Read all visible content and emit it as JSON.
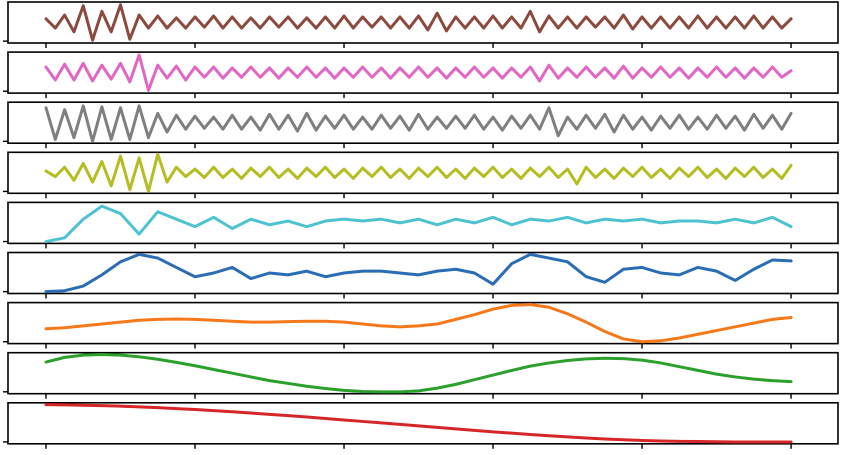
{
  "chart_data": [
    {
      "type": "line",
      "color": "#8c4a3f",
      "xlim": [
        -51,
        1063
      ],
      "xticks": [
        0,
        200,
        400,
        600,
        800,
        1000
      ],
      "ylim": [
        -1.1,
        1.1
      ],
      "yticks": [
        -1
      ],
      "x": [
        0,
        12.5,
        25,
        37.5,
        50,
        62.5,
        75,
        87.5,
        100,
        112.5,
        125,
        137.5,
        150,
        162.5,
        175,
        187.5,
        200,
        212.5,
        225,
        237.5,
        250,
        262.5,
        275,
        287.5,
        300,
        312.5,
        325,
        337.5,
        350,
        362.5,
        375,
        387.5,
        400,
        412.5,
        425,
        437.5,
        450,
        462.5,
        475,
        487.5,
        500,
        512.5,
        525,
        537.5,
        550,
        562.5,
        575,
        587.5,
        600,
        612.5,
        625,
        637.5,
        650,
        662.5,
        675,
        687.5,
        700,
        712.5,
        725,
        737.5,
        750,
        762.5,
        775,
        787.5,
        800,
        812.5,
        825,
        837.5,
        850,
        862.5,
        875,
        887.5,
        900,
        912.5,
        925,
        937.5,
        950,
        962.5,
        975,
        987.5,
        1000
      ],
      "values": [
        0.2,
        -0.3,
        0.4,
        -0.5,
        0.9,
        -0.95,
        0.6,
        -0.5,
        0.95,
        -0.9,
        0.4,
        -0.3,
        0.35,
        -0.3,
        0.25,
        -0.3,
        0.3,
        -0.25,
        0.35,
        -0.3,
        0.3,
        -0.3,
        0.25,
        -0.3,
        0.3,
        -0.25,
        0.3,
        -0.3,
        0.25,
        -0.3,
        0.3,
        -0.3,
        0.35,
        -0.3,
        0.3,
        -0.25,
        0.3,
        -0.3,
        0.3,
        -0.3,
        0.35,
        -0.4,
        0.5,
        -0.45,
        0.3,
        -0.3,
        0.3,
        -0.3,
        0.35,
        -0.3,
        0.3,
        -0.3,
        0.6,
        -0.5,
        0.35,
        -0.3,
        0.3,
        -0.3,
        0.3,
        -0.25,
        0.3,
        -0.3,
        0.4,
        -0.35,
        0.3,
        -0.3,
        0.3,
        -0.3,
        0.3,
        -0.3,
        0.35,
        -0.3,
        0.3,
        -0.3,
        0.3,
        -0.3,
        0.35,
        -0.3,
        0.3,
        -0.3,
        0.2
      ]
    },
    {
      "type": "line",
      "color": "#e067c4",
      "xlim": [
        -51,
        1063
      ],
      "xticks": [
        0,
        200,
        400,
        600,
        800,
        1000
      ],
      "ylim": [
        -1.1,
        1.1
      ],
      "yticks": [
        -1
      ],
      "x": [
        0,
        12.5,
        25,
        37.5,
        50,
        62.5,
        75,
        87.5,
        100,
        112.5,
        125,
        137.5,
        150,
        162.5,
        175,
        187.5,
        200,
        212.5,
        225,
        237.5,
        250,
        262.5,
        275,
        287.5,
        300,
        312.5,
        325,
        337.5,
        350,
        362.5,
        375,
        387.5,
        400,
        412.5,
        425,
        437.5,
        450,
        462.5,
        475,
        487.5,
        500,
        512.5,
        525,
        537.5,
        550,
        562.5,
        575,
        587.5,
        600,
        612.5,
        625,
        637.5,
        650,
        662.5,
        675,
        687.5,
        700,
        712.5,
        725,
        737.5,
        750,
        762.5,
        775,
        787.5,
        800,
        812.5,
        825,
        837.5,
        850,
        862.5,
        875,
        887.5,
        900,
        912.5,
        925,
        937.5,
        950,
        962.5,
        975,
        987.5,
        1000
      ],
      "values": [
        0.3,
        -0.4,
        0.45,
        -0.4,
        0.5,
        -0.45,
        0.4,
        -0.35,
        0.5,
        -0.5,
        0.95,
        -0.95,
        0.4,
        -0.3,
        0.35,
        -0.4,
        0.3,
        -0.25,
        0.3,
        -0.3,
        0.25,
        -0.25,
        0.3,
        -0.25,
        0.25,
        -0.3,
        0.25,
        -0.25,
        0.3,
        -0.25,
        0.25,
        -0.3,
        0.25,
        -0.25,
        0.3,
        -0.25,
        0.25,
        -0.3,
        0.25,
        -0.25,
        0.3,
        -0.25,
        0.25,
        -0.3,
        0.25,
        -0.25,
        0.3,
        -0.25,
        0.25,
        -0.3,
        0.25,
        -0.25,
        0.3,
        -0.45,
        0.4,
        -0.3,
        0.25,
        -0.25,
        0.3,
        -0.25,
        0.25,
        -0.3,
        0.35,
        -0.3,
        0.25,
        -0.25,
        0.3,
        -0.25,
        0.25,
        -0.3,
        0.25,
        -0.25,
        0.3,
        -0.25,
        0.25,
        -0.3,
        0.25,
        -0.25,
        0.3,
        -0.25,
        0.1
      ]
    },
    {
      "type": "line",
      "color": "#7f7f7f",
      "xlim": [
        -51,
        1063
      ],
      "xticks": [
        0,
        200,
        400,
        600,
        800,
        1000
      ],
      "ylim": [
        -1.1,
        1.1
      ],
      "yticks": [
        -1
      ],
      "x": [
        0,
        12.5,
        25,
        37.5,
        50,
        62.5,
        75,
        87.5,
        100,
        112.5,
        125,
        137.5,
        150,
        162.5,
        175,
        187.5,
        200,
        212.5,
        225,
        237.5,
        250,
        262.5,
        275,
        287.5,
        300,
        312.5,
        325,
        337.5,
        350,
        362.5,
        375,
        387.5,
        400,
        412.5,
        425,
        437.5,
        450,
        462.5,
        475,
        487.5,
        500,
        512.5,
        525,
        537.5,
        550,
        562.5,
        575,
        587.5,
        600,
        612.5,
        625,
        637.5,
        650,
        662.5,
        675,
        687.5,
        700,
        712.5,
        725,
        737.5,
        750,
        762.5,
        775,
        787.5,
        800,
        812.5,
        825,
        837.5,
        850,
        862.5,
        875,
        887.5,
        900,
        912.5,
        925,
        937.5,
        950,
        962.5,
        975,
        987.5,
        1000
      ],
      "values": [
        0.8,
        -0.9,
        0.7,
        -0.8,
        0.9,
        -1.0,
        0.85,
        -0.9,
        0.8,
        -0.9,
        0.9,
        -0.8,
        0.5,
        -0.5,
        0.4,
        -0.35,
        0.35,
        -0.3,
        0.3,
        -0.35,
        0.4,
        -0.35,
        0.3,
        -0.4,
        0.45,
        -0.35,
        0.4,
        -0.45,
        0.5,
        -0.4,
        0.35,
        -0.3,
        0.4,
        -0.35,
        0.3,
        -0.35,
        0.4,
        -0.3,
        0.35,
        -0.4,
        0.45,
        -0.35,
        0.3,
        -0.3,
        0.35,
        -0.3,
        0.4,
        -0.35,
        0.3,
        -0.4,
        0.35,
        -0.3,
        0.4,
        -0.35,
        0.8,
        -0.7,
        0.3,
        -0.35,
        0.4,
        -0.3,
        0.45,
        -0.5,
        0.4,
        -0.35,
        0.3,
        -0.4,
        0.35,
        -0.3,
        0.4,
        -0.35,
        0.3,
        -0.35,
        0.4,
        -0.3,
        0.35,
        -0.4,
        0.45,
        -0.3,
        0.4,
        -0.35,
        0.5
      ]
    },
    {
      "type": "line",
      "color": "#b5bd22",
      "xlim": [
        -51,
        1063
      ],
      "xticks": [
        0,
        200,
        400,
        600,
        800,
        1000
      ],
      "ylim": [
        -1.1,
        1.1
      ],
      "yticks": [
        -1
      ],
      "x": [
        0,
        12.5,
        25,
        37.5,
        50,
        62.5,
        75,
        87.5,
        100,
        112.5,
        125,
        137.5,
        150,
        162.5,
        175,
        187.5,
        200,
        212.5,
        225,
        237.5,
        250,
        262.5,
        275,
        287.5,
        300,
        312.5,
        325,
        337.5,
        350,
        362.5,
        375,
        387.5,
        400,
        412.5,
        425,
        437.5,
        450,
        462.5,
        475,
        487.5,
        500,
        512.5,
        525,
        537.5,
        550,
        562.5,
        575,
        587.5,
        600,
        612.5,
        625,
        637.5,
        650,
        662.5,
        675,
        687.5,
        700,
        712.5,
        725,
        737.5,
        750,
        762.5,
        775,
        787.5,
        800,
        812.5,
        825,
        837.5,
        850,
        862.5,
        875,
        887.5,
        900,
        912.5,
        925,
        937.5,
        950,
        962.5,
        975,
        987.5,
        1000
      ],
      "values": [
        0.1,
        -0.2,
        0.3,
        -0.4,
        0.5,
        -0.5,
        0.6,
        -0.7,
        0.9,
        -0.9,
        0.8,
        -1.0,
        1.0,
        -0.5,
        0.3,
        -0.2,
        0.2,
        -0.25,
        0.3,
        -0.25,
        0.2,
        -0.3,
        0.25,
        -0.2,
        0.3,
        -0.25,
        0.2,
        -0.3,
        0.25,
        -0.2,
        0.3,
        -0.25,
        0.2,
        -0.3,
        0.25,
        -0.2,
        0.3,
        -0.25,
        0.2,
        -0.3,
        0.25,
        -0.2,
        0.3,
        -0.25,
        0.2,
        -0.3,
        0.25,
        -0.2,
        0.3,
        -0.25,
        0.2,
        -0.3,
        0.25,
        -0.2,
        0.3,
        -0.25,
        0.2,
        -0.6,
        0.3,
        -0.25,
        0.2,
        -0.3,
        0.25,
        -0.2,
        0.3,
        -0.25,
        0.2,
        -0.3,
        0.25,
        -0.2,
        0.3,
        -0.25,
        0.2,
        -0.3,
        0.25,
        -0.2,
        0.3,
        -0.25,
        0.2,
        -0.3,
        0.4
      ]
    },
    {
      "type": "line",
      "color": "#4ec3cf",
      "xlim": [
        -51,
        1063
      ],
      "xticks": [
        0,
        200,
        400,
        600,
        800,
        1000
      ],
      "ylim": [
        -1.1,
        1.1
      ],
      "yticks": [
        -1
      ],
      "x": [
        0,
        25,
        50,
        75,
        100,
        125,
        150,
        175,
        200,
        225,
        250,
        275,
        300,
        325,
        350,
        375,
        400,
        425,
        450,
        475,
        500,
        525,
        550,
        575,
        600,
        625,
        650,
        675,
        700,
        725,
        750,
        775,
        800,
        825,
        850,
        875,
        900,
        925,
        950,
        975,
        1000
      ],
      "values": [
        -1,
        -0.8,
        0.2,
        0.9,
        0.5,
        -0.6,
        0.6,
        0.2,
        -0.2,
        0.3,
        -0.3,
        0.2,
        -0.1,
        0.1,
        -0.2,
        0.1,
        0.2,
        0.1,
        0.2,
        0.0,
        0.2,
        -0.1,
        0.2,
        0.0,
        0.3,
        -0.1,
        0.2,
        0.1,
        0.3,
        0.0,
        0.2,
        0.1,
        0.2,
        0.0,
        0.1,
        0.1,
        0.0,
        0.2,
        0.0,
        0.3,
        -0.2
      ]
    },
    {
      "type": "line",
      "color": "#2a6db5",
      "xlim": [
        -51,
        1063
      ],
      "xticks": [
        0,
        200,
        400,
        600,
        800,
        1000
      ],
      "ylim": [
        -1.1,
        1.1
      ],
      "yticks": [
        -1
      ],
      "x": [
        0,
        25,
        50,
        75,
        100,
        125,
        150,
        175,
        200,
        225,
        250,
        275,
        300,
        325,
        350,
        375,
        400,
        425,
        450,
        475,
        500,
        525,
        550,
        575,
        600,
        625,
        650,
        675,
        700,
        725,
        750,
        775,
        800,
        825,
        850,
        875,
        900,
        925,
        950,
        975,
        1000
      ],
      "values": [
        -1,
        -0.95,
        -0.7,
        -0.1,
        0.6,
        1.0,
        0.8,
        0.3,
        -0.2,
        0.0,
        0.3,
        -0.3,
        0.0,
        -0.1,
        0.1,
        -0.2,
        0.0,
        0.1,
        0.1,
        0.0,
        -0.1,
        0.1,
        0.2,
        0.0,
        -0.6,
        0.5,
        1.0,
        0.8,
        0.6,
        -0.2,
        -0.5,
        0.2,
        0.3,
        0.0,
        -0.1,
        0.3,
        0.1,
        -0.4,
        0.2,
        0.7,
        0.65
      ]
    },
    {
      "type": "line",
      "color": "#f5791a",
      "xlim": [
        -51,
        1063
      ],
      "xticks": [
        0,
        200,
        400,
        600,
        800,
        1000
      ],
      "ylim": [
        -1.1,
        1.1
      ],
      "yticks": [
        -1
      ],
      "x": [
        0,
        25,
        50,
        75,
        100,
        125,
        150,
        175,
        200,
        225,
        250,
        275,
        300,
        325,
        350,
        375,
        400,
        425,
        450,
        475,
        500,
        525,
        550,
        575,
        600,
        625,
        650,
        675,
        700,
        725,
        750,
        775,
        800,
        825,
        850,
        875,
        900,
        925,
        950,
        975,
        1000
      ],
      "values": [
        -0.3,
        -0.25,
        -0.15,
        -0.05,
        0.05,
        0.15,
        0.2,
        0.22,
        0.2,
        0.15,
        0.1,
        0.05,
        0.05,
        0.08,
        0.1,
        0.1,
        0.05,
        -0.05,
        -0.15,
        -0.2,
        -0.15,
        -0.05,
        0.2,
        0.45,
        0.75,
        0.95,
        1.0,
        0.85,
        0.5,
        0.05,
        -0.45,
        -0.85,
        -1.0,
        -0.95,
        -0.8,
        -0.6,
        -0.4,
        -0.2,
        0.0,
        0.2,
        0.3
      ]
    },
    {
      "type": "line",
      "color": "#2ca02c",
      "xlim": [
        -51,
        1063
      ],
      "xticks": [
        0,
        200,
        400,
        600,
        800,
        1000
      ],
      "ylim": [
        -1.1,
        1.1
      ],
      "yticks": [
        -1
      ],
      "x": [
        0,
        25,
        50,
        75,
        100,
        125,
        150,
        175,
        200,
        225,
        250,
        275,
        300,
        325,
        350,
        375,
        400,
        425,
        450,
        475,
        500,
        525,
        550,
        575,
        600,
        625,
        650,
        675,
        700,
        725,
        750,
        775,
        800,
        825,
        850,
        875,
        900,
        925,
        950,
        975,
        1000
      ],
      "values": [
        0.6,
        0.85,
        0.97,
        1.0,
        0.97,
        0.88,
        0.75,
        0.58,
        0.4,
        0.2,
        0.0,
        -0.2,
        -0.4,
        -0.55,
        -0.7,
        -0.82,
        -0.92,
        -0.98,
        -1.0,
        -1.0,
        -0.95,
        -0.8,
        -0.6,
        -0.35,
        -0.1,
        0.15,
        0.38,
        0.55,
        0.68,
        0.77,
        0.8,
        0.78,
        0.7,
        0.55,
        0.35,
        0.15,
        -0.05,
        -0.2,
        -0.32,
        -0.4,
        -0.45
      ]
    },
    {
      "type": "line",
      "color": "#d62728",
      "xlim": [
        -51,
        1063
      ],
      "xticks": [
        0,
        200,
        400,
        600,
        800,
        1000
      ],
      "ylim": [
        -1.1,
        1.1
      ],
      "yticks": [
        -1
      ],
      "x": [
        0,
        25,
        50,
        75,
        100,
        125,
        150,
        175,
        200,
        225,
        250,
        275,
        300,
        325,
        350,
        375,
        400,
        425,
        450,
        475,
        500,
        525,
        550,
        575,
        600,
        625,
        650,
        675,
        700,
        725,
        750,
        775,
        800,
        825,
        850,
        875,
        900,
        925,
        950,
        975,
        1000
      ],
      "values": [
        1.0,
        0.99,
        0.97,
        0.95,
        0.92,
        0.88,
        0.84,
        0.79,
        0.74,
        0.68,
        0.62,
        0.55,
        0.48,
        0.41,
        0.34,
        0.26,
        0.18,
        0.1,
        0.02,
        -0.06,
        -0.14,
        -0.22,
        -0.3,
        -0.38,
        -0.46,
        -0.53,
        -0.6,
        -0.67,
        -0.73,
        -0.79,
        -0.84,
        -0.88,
        -0.92,
        -0.95,
        -0.97,
        -0.98,
        -0.99,
        -1.0,
        -1.0,
        -1.0,
        -1.0
      ]
    }
  ]
}
